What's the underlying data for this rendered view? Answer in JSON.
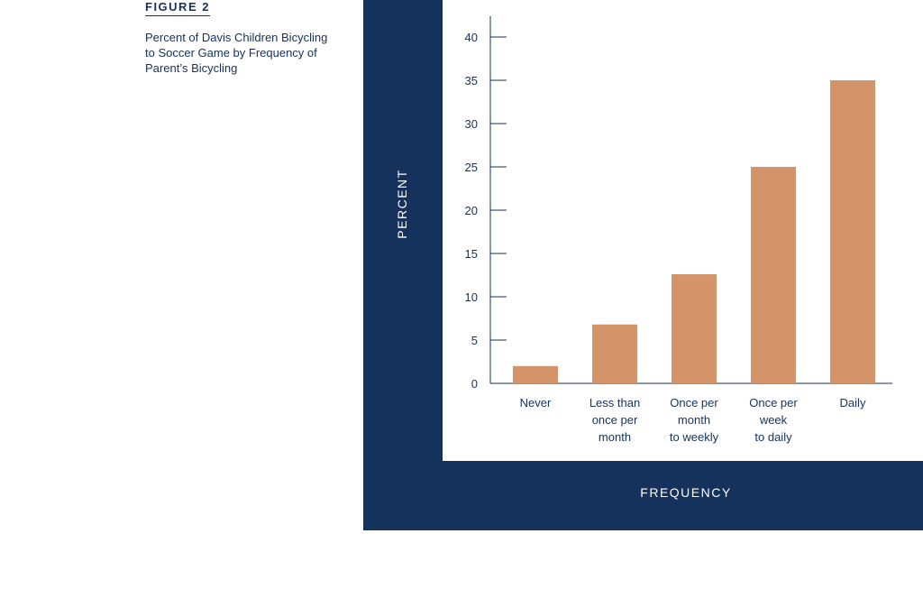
{
  "figure": {
    "label": "FIGURE 2",
    "caption_lines": [
      "Percent of Davis Children Bicycling",
      "to Soccer Game by Frequency of",
      "Parent’s Bicycling"
    ]
  },
  "colors": {
    "frame": "#14325c",
    "bar": "#d4946a",
    "plot_bg": "#ffffff",
    "axis_text": "#14325c"
  },
  "chart_data": {
    "type": "bar",
    "title": "Percent of Davis Children Bicycling to Soccer Game by Frequency of Parent’s Bicycling",
    "xlabel": "FREQUENCY",
    "ylabel": "PERCENT",
    "categories": [
      [
        "Never"
      ],
      [
        "Less than",
        "once per",
        "month"
      ],
      [
        "Once per",
        "month",
        "to weekly"
      ],
      [
        "Once per",
        "week",
        "to daily"
      ],
      [
        "Daily"
      ]
    ],
    "values": [
      2,
      6.8,
      12.6,
      25,
      35
    ],
    "yticks": [
      0,
      5,
      10,
      15,
      20,
      25,
      30,
      35,
      40
    ],
    "ylim": [
      0,
      42
    ],
    "grid": false,
    "legend": "none"
  }
}
